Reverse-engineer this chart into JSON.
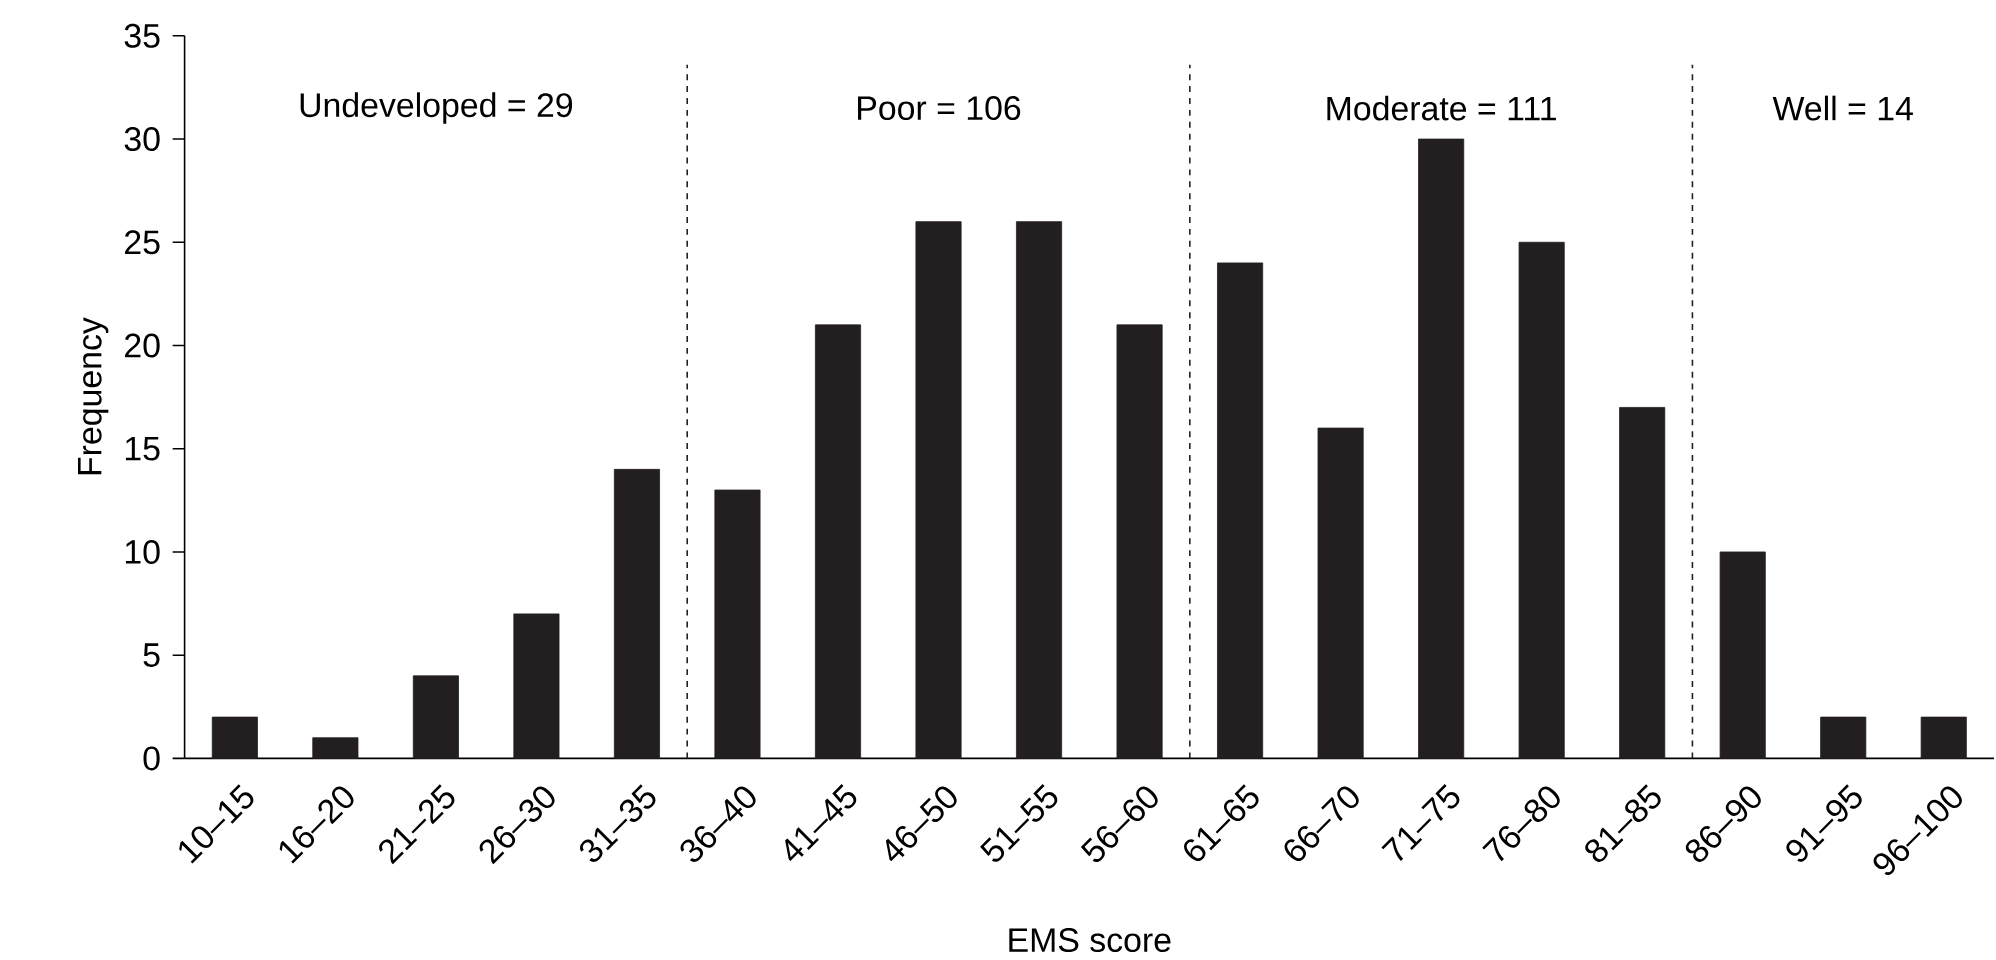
{
  "chart_data": {
    "type": "bar",
    "xlabel": "EMS score",
    "ylabel": "Frequency",
    "categories": [
      "10–15",
      "16–20",
      "21–25",
      "26–30",
      "31–35",
      "36–40",
      "41–45",
      "46–50",
      "51–55",
      "56–60",
      "61–65",
      "66–70",
      "71–75",
      "76–80",
      "81–85",
      "86–90",
      "91–95",
      "96–100"
    ],
    "values": [
      2,
      1,
      4,
      7,
      14,
      13,
      21,
      26,
      26,
      21,
      24,
      16,
      30,
      25,
      17,
      10,
      2,
      2
    ],
    "color": "#231f20",
    "ylim": [
      0,
      35
    ],
    "yticks": [
      0,
      5,
      10,
      15,
      20,
      25,
      30,
      35
    ],
    "annotations": [
      "Undeveloped = 29",
      "Poor = 106",
      "Moderate = 111",
      "Well = 14"
    ]
  }
}
